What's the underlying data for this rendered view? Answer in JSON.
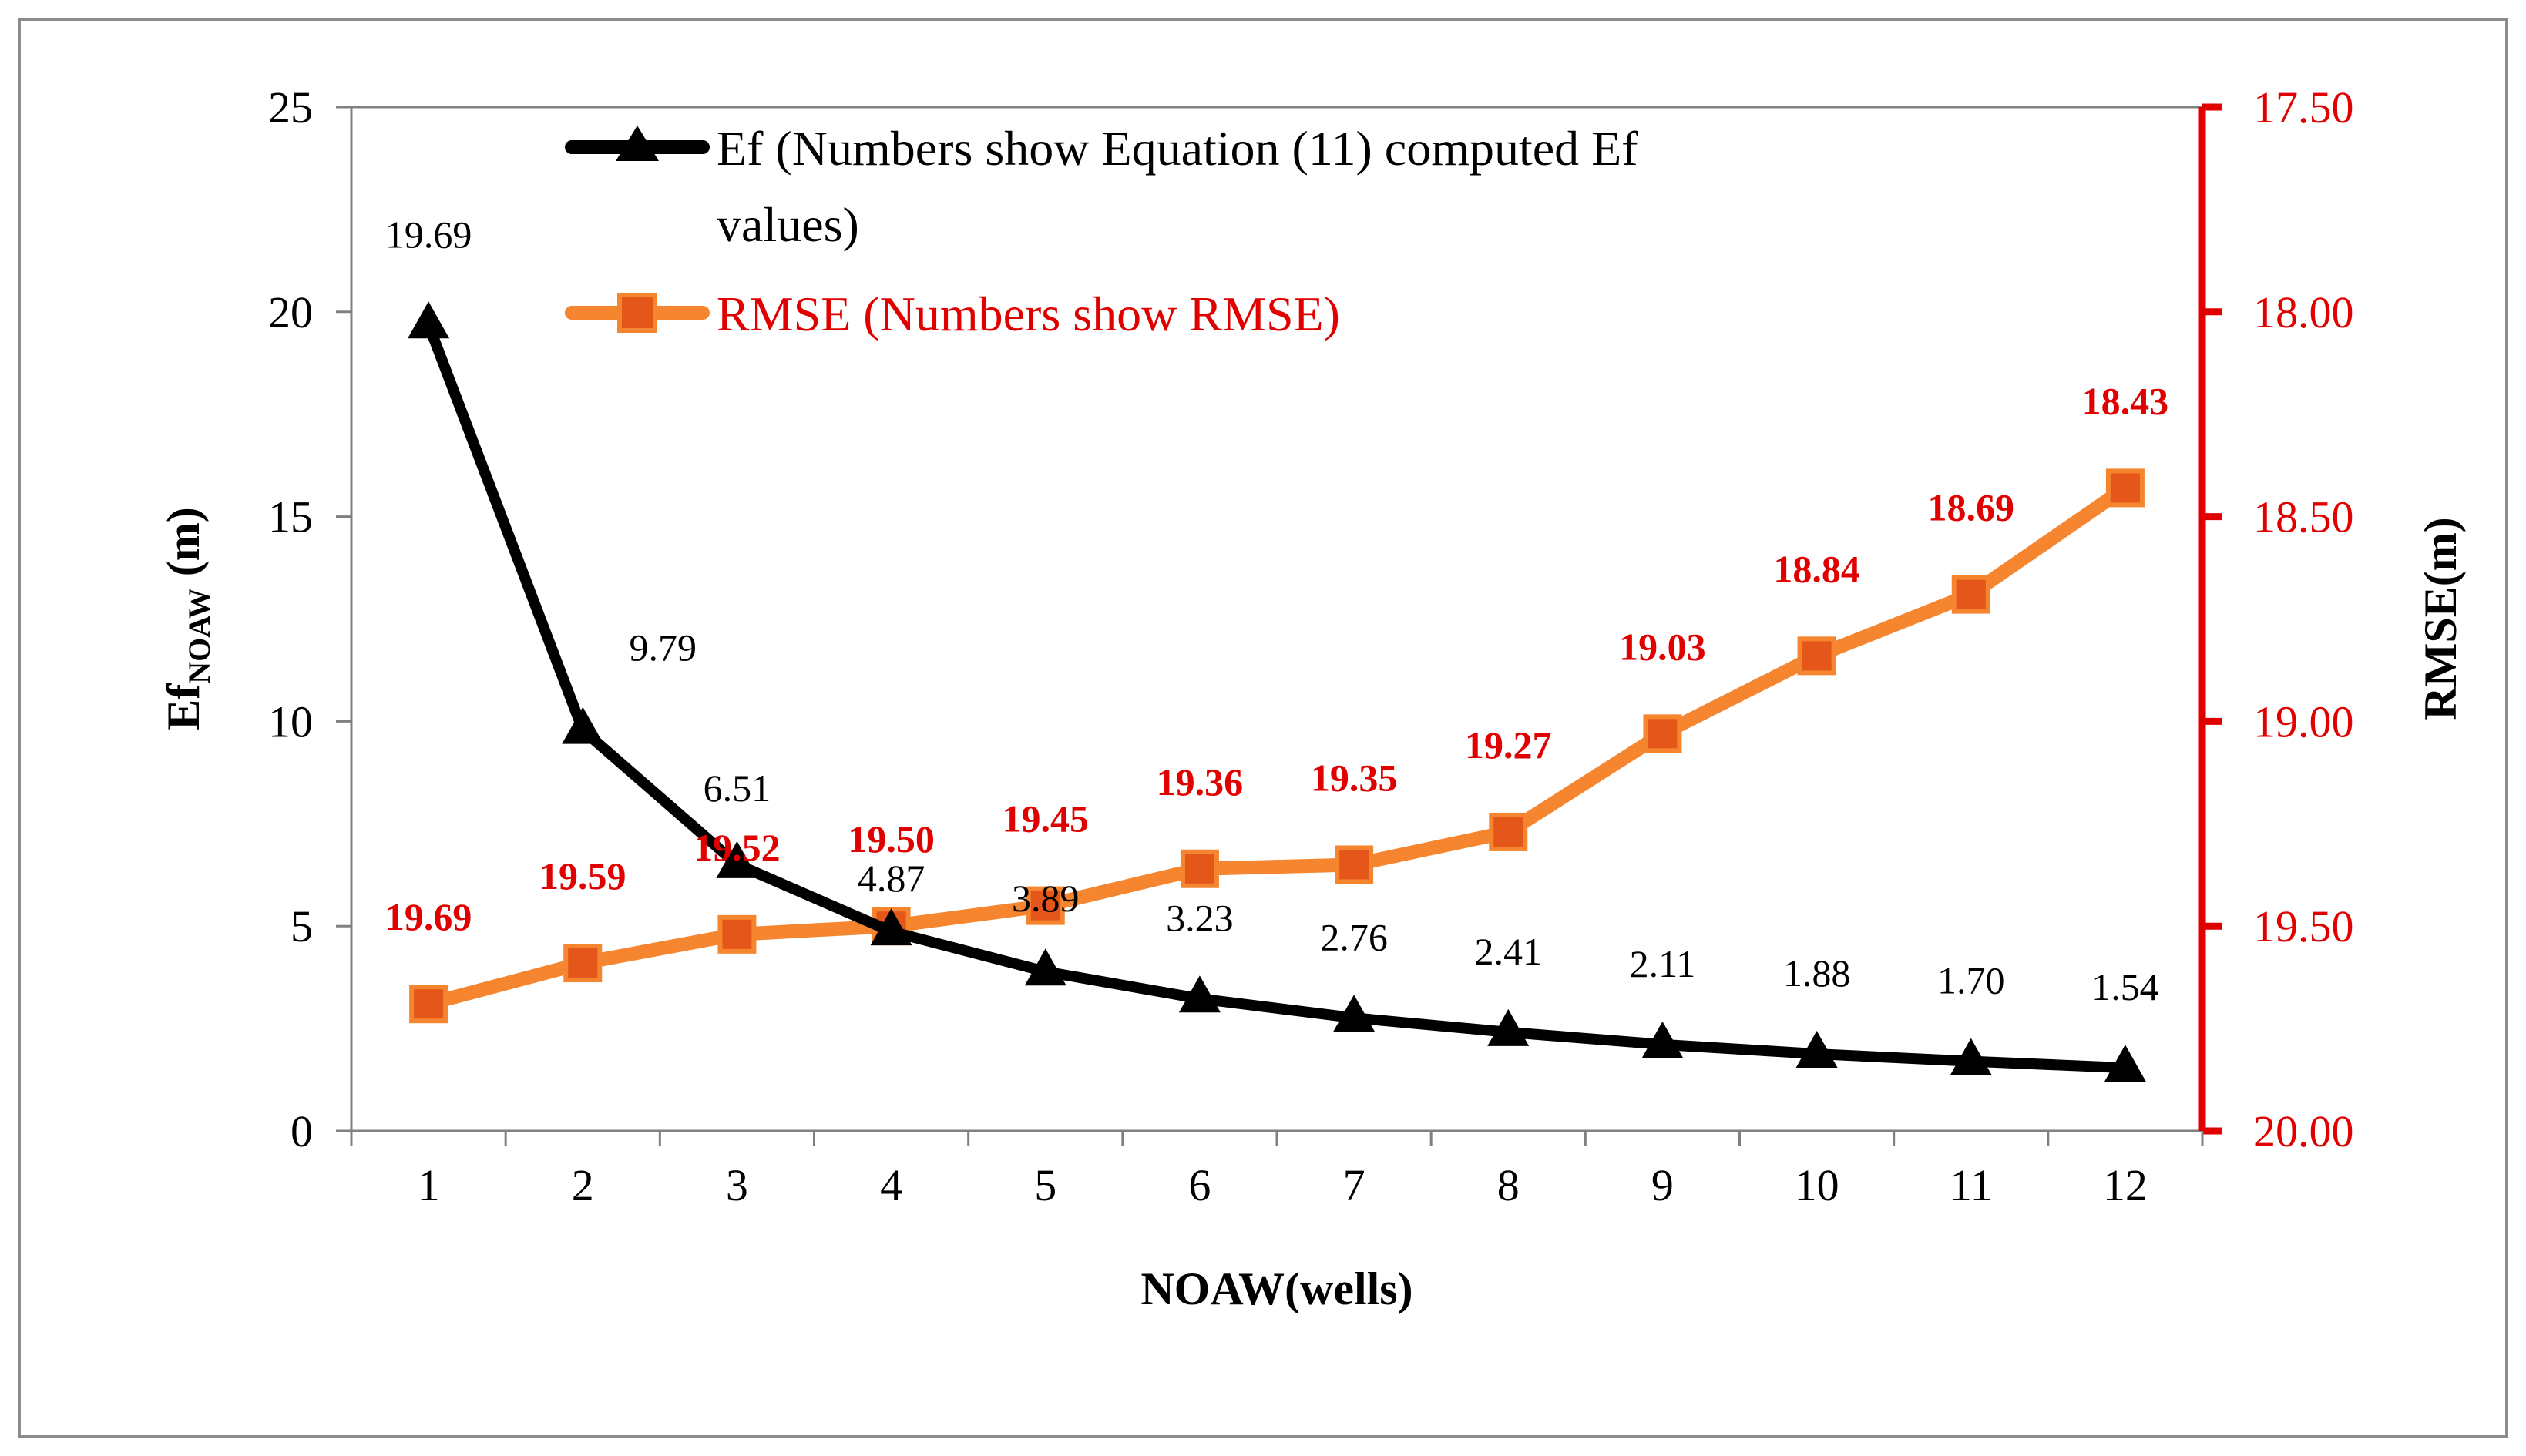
{
  "chart_data": {
    "type": "line",
    "title": "",
    "xlabel": "NOAW(wells)",
    "ylabel": {
      "main": "Ef",
      "subscript": "NOAW",
      "suffix": " (m)"
    },
    "y2label": "RMSE(m)",
    "categories": [
      "1",
      "2",
      "3",
      "4",
      "5",
      "6",
      "7",
      "8",
      "9",
      "10",
      "11",
      "12"
    ],
    "ylim": [
      0,
      25
    ],
    "y_ticks": [
      "0",
      "5",
      "10",
      "15",
      "20",
      "25"
    ],
    "y2lim": [
      20.0,
      17.5
    ],
    "y2_reversed": true,
    "y2_ticks": [
      "20.00",
      "19.50",
      "19.00",
      "18.50",
      "18.00",
      "17.50"
    ],
    "series": [
      {
        "name": "Ef",
        "axis": "left",
        "marker": "triangle",
        "color": "#000000",
        "values": [
          19.69,
          9.79,
          6.51,
          4.87,
          3.89,
          3.23,
          2.76,
          2.41,
          2.11,
          1.88,
          1.7,
          1.54
        ],
        "labels": [
          "19.69",
          "9.79",
          "6.51",
          "4.87",
          "3.89",
          "3.23",
          "2.76",
          "2.41",
          "2.11",
          "1.88",
          "1.70",
          "1.54"
        ]
      },
      {
        "name": "RMSE",
        "axis": "right",
        "marker": "square",
        "color": "#f5862f",
        "marker_fill": "#e4561a",
        "label_color": "#e00000",
        "values": [
          19.69,
          19.59,
          19.52,
          19.5,
          19.45,
          19.36,
          19.35,
          19.27,
          19.03,
          18.84,
          18.69,
          18.43
        ],
        "labels": [
          "19.69",
          "19.59",
          "19.52",
          "19.50",
          "19.45",
          "19.36",
          "19.35",
          "19.27",
          "19.03",
          "18.84",
          "18.69",
          "18.43"
        ]
      }
    ],
    "legend": {
      "position": "top-center",
      "entries": [
        {
          "line1": "Ef (Numbers show Equation (11)  computed Ef",
          "line2": "values)"
        },
        {
          "line1": "RMSE (Numbers show RMSE)"
        }
      ]
    },
    "colors": {
      "left_axis": "#808080",
      "right_axis": "#e00000",
      "ef_line": "#000000",
      "rmse_line": "#f5862f",
      "rmse_marker": "#e4561a"
    }
  }
}
